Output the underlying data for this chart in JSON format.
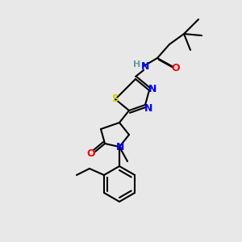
{
  "bg_color": "#e8e8e8",
  "bond_color": "#000000",
  "bond_width": 1.5,
  "atom_colors": {
    "N": "#0000ff",
    "O": "#ff0000",
    "S": "#cccc00",
    "H": "#5f9ea0",
    "C": "#000000"
  },
  "font_size": 9,
  "font_size_small": 8
}
